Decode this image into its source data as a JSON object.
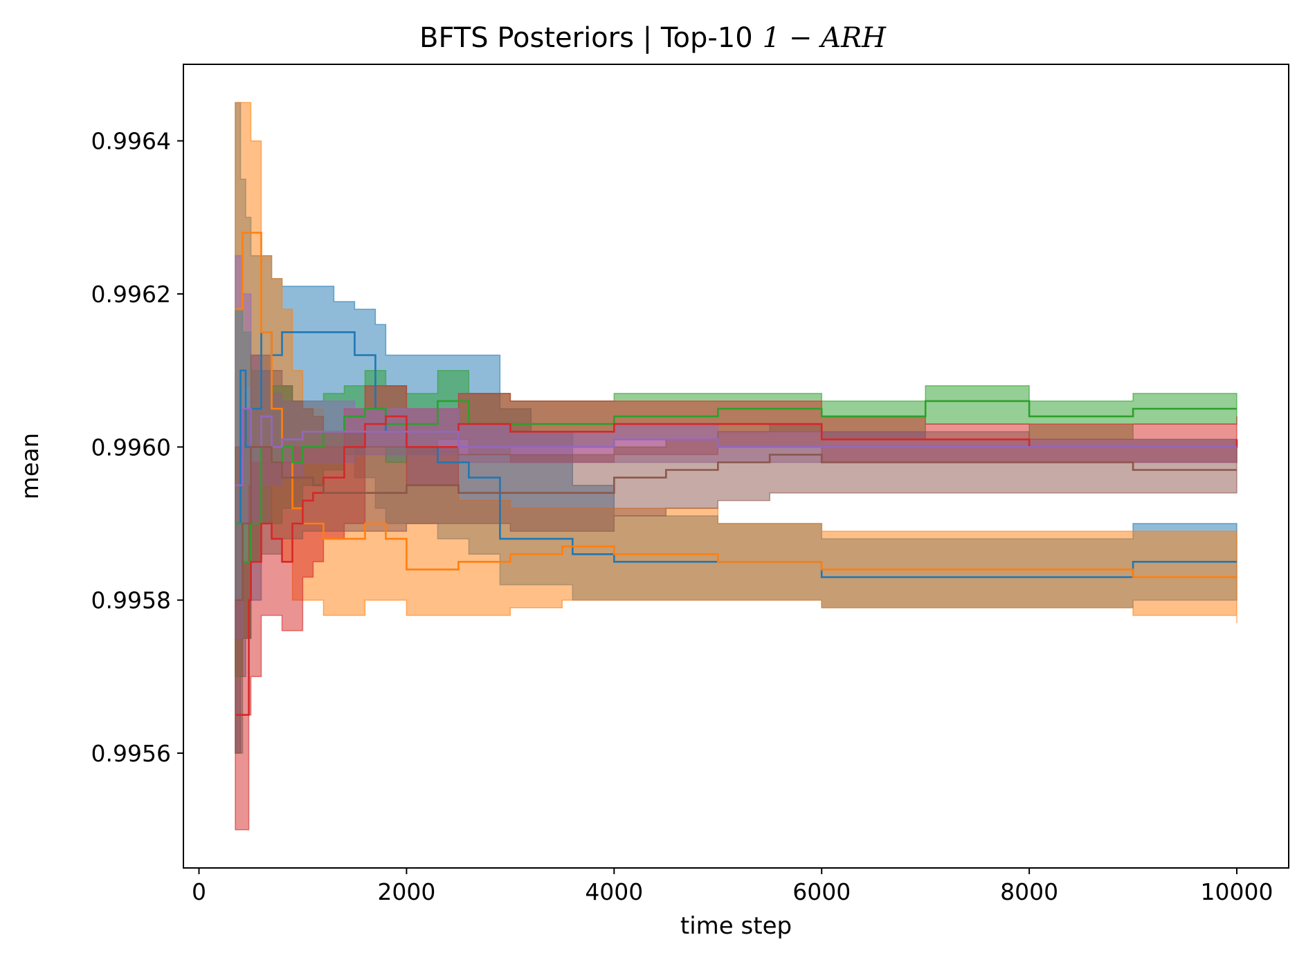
{
  "chart_data": {
    "type": "line",
    "title": "BFTS Posteriors | Top-10",
    "title_math": "1 − ARH",
    "xlabel": "time step",
    "ylabel": "mean",
    "xlim": [
      -150,
      10500
    ],
    "ylim": [
      0.99545,
      0.9965
    ],
    "xticks": [
      0,
      2000,
      4000,
      6000,
      8000,
      10000
    ],
    "xtick_labels": [
      "0",
      "2000",
      "4000",
      "6000",
      "8000",
      "10000"
    ],
    "yticks": [
      0.9956,
      0.9958,
      0.996,
      0.9962,
      0.9964
    ],
    "ytick_labels": [
      "0.9956",
      "0.9958",
      "0.9960",
      "0.9962",
      "0.9964"
    ],
    "grid": false,
    "legend": "none",
    "series": [
      {
        "color": "#1f77b4",
        "x": [
          350,
          400,
          450,
          500,
          600,
          700,
          800,
          1000,
          1300,
          1500,
          1700,
          1800,
          2000,
          2300,
          2600,
          2900,
          3200,
          3600,
          4000,
          5000,
          6000,
          7000,
          8000,
          9000,
          10000
        ],
        "y": [
          0.9959,
          0.9961,
          0.996,
          0.99605,
          0.99615,
          0.99612,
          0.99615,
          0.99615,
          0.99615,
          0.99612,
          0.99605,
          0.99602,
          0.996,
          0.99598,
          0.99596,
          0.99588,
          0.99588,
          0.99586,
          0.99585,
          0.99585,
          0.99583,
          0.99583,
          0.99583,
          0.99585,
          0.99585
        ],
        "lower": [
          0.9956,
          0.9957,
          0.99575,
          0.9958,
          0.9959,
          0.99595,
          0.99598,
          0.996,
          0.996,
          0.99596,
          0.99592,
          0.9959,
          0.9959,
          0.99588,
          0.99586,
          0.99582,
          0.99582,
          0.9958,
          0.9958,
          0.9958,
          0.99579,
          0.99579,
          0.99579,
          0.9958,
          0.9958
        ],
        "upper": [
          0.99645,
          0.99635,
          0.9963,
          0.99625,
          0.99625,
          0.99622,
          0.99621,
          0.99621,
          0.99619,
          0.99618,
          0.99616,
          0.99612,
          0.99612,
          0.99612,
          0.99612,
          0.99605,
          0.99602,
          0.99595,
          0.99591,
          0.9959,
          0.99588,
          0.99588,
          0.99588,
          0.9959,
          0.9959
        ]
      },
      {
        "color": "#ff7f0e",
        "x": [
          350,
          420,
          500,
          600,
          700,
          800,
          900,
          1000,
          1200,
          1400,
          1600,
          1800,
          2000,
          2500,
          3000,
          3500,
          4000,
          5000,
          6000,
          7000,
          8000,
          9000,
          10000
        ],
        "y": [
          0.99618,
          0.99628,
          0.99628,
          0.99615,
          0.99605,
          0.996,
          0.99592,
          0.9959,
          0.99588,
          0.99588,
          0.9959,
          0.99588,
          0.99584,
          0.99585,
          0.99586,
          0.99587,
          0.99586,
          0.99585,
          0.99584,
          0.99584,
          0.99584,
          0.99583,
          0.99583
        ],
        "lower": [
          0.99595,
          0.99608,
          0.996,
          0.99595,
          0.99588,
          0.99585,
          0.9958,
          0.9958,
          0.99578,
          0.99578,
          0.9958,
          0.9958,
          0.99578,
          0.99578,
          0.99579,
          0.9958,
          0.9958,
          0.9958,
          0.99579,
          0.99579,
          0.99579,
          0.99578,
          0.99577
        ],
        "upper": [
          0.99645,
          0.99645,
          0.9964,
          0.99625,
          0.99622,
          0.99618,
          0.9961,
          0.99605,
          0.99602,
          0.996,
          0.996,
          0.99598,
          0.99595,
          0.99593,
          0.99592,
          0.99592,
          0.99592,
          0.9959,
          0.99589,
          0.99589,
          0.99589,
          0.99589,
          0.99589
        ]
      },
      {
        "color": "#2ca02c",
        "x": [
          350,
          420,
          500,
          600,
          700,
          800,
          900,
          1000,
          1200,
          1400,
          1600,
          1800,
          2000,
          2300,
          2600,
          3000,
          3500,
          4000,
          5000,
          6000,
          7000,
          8000,
          9000,
          10000
        ],
        "y": [
          0.9959,
          0.99585,
          0.9959,
          0.996,
          0.99598,
          0.996,
          0.99598,
          0.996,
          0.99602,
          0.99604,
          0.99605,
          0.99603,
          0.99603,
          0.99606,
          0.99603,
          0.99603,
          0.99603,
          0.99604,
          0.99605,
          0.99604,
          0.99606,
          0.99604,
          0.99605,
          0.99605
        ],
        "lower": [
          0.9957,
          0.99575,
          0.99585,
          0.9959,
          0.9959,
          0.99592,
          0.99592,
          0.99595,
          0.99597,
          0.99599,
          0.996,
          0.99598,
          0.99599,
          0.99601,
          0.99599,
          0.996,
          0.996,
          0.99601,
          0.99602,
          0.99601,
          0.99603,
          0.99601,
          0.99603,
          0.99604
        ],
        "upper": [
          0.99618,
          0.99615,
          0.9961,
          0.9961,
          0.99608,
          0.99608,
          0.99606,
          0.99606,
          0.99607,
          0.99608,
          0.9961,
          0.99608,
          0.99607,
          0.9961,
          0.99607,
          0.99606,
          0.99606,
          0.99607,
          0.99607,
          0.99606,
          0.99608,
          0.99606,
          0.99607,
          0.99606
        ]
      },
      {
        "color": "#d62728",
        "x": [
          350,
          420,
          480,
          500,
          600,
          700,
          800,
          900,
          1000,
          1100,
          1200,
          1400,
          1600,
          1800,
          2000,
          2200,
          2500,
          3000,
          3500,
          4000,
          5000,
          6000,
          7000,
          8000,
          9000,
          10000
        ],
        "y": [
          0.99565,
          0.99565,
          0.9958,
          0.99585,
          0.9959,
          0.99588,
          0.99585,
          0.9959,
          0.99593,
          0.99594,
          0.99596,
          0.996,
          0.99603,
          0.99604,
          0.996,
          0.996,
          0.99603,
          0.99602,
          0.99602,
          0.99603,
          0.99603,
          0.99601,
          0.99601,
          0.996,
          0.996,
          0.99601
        ],
        "lower": [
          0.9955,
          0.9955,
          0.99565,
          0.9957,
          0.99578,
          0.99578,
          0.99576,
          0.99576,
          0.99583,
          0.99585,
          0.99588,
          0.9959,
          0.996,
          0.996,
          0.99595,
          0.99595,
          0.99599,
          0.99598,
          0.99598,
          0.99599,
          0.996,
          0.99598,
          0.99598,
          0.99598,
          0.99598,
          0.99599
        ],
        "upper": [
          0.9958,
          0.99585,
          0.99595,
          0.99598,
          0.996,
          0.99598,
          0.99598,
          0.996,
          0.996,
          0.996,
          0.996,
          0.99605,
          0.99608,
          0.99608,
          0.99605,
          0.99605,
          0.99607,
          0.99606,
          0.99606,
          0.99606,
          0.99606,
          0.99604,
          0.99603,
          0.99603,
          0.99603,
          0.99604
        ]
      },
      {
        "color": "#9467bd",
        "x": [
          350,
          420,
          500,
          600,
          700,
          800,
          1000,
          1200,
          1500,
          1800,
          2000,
          2500,
          3000,
          3500,
          4000,
          5000,
          6000,
          7000,
          8000,
          9000,
          10000
        ],
        "y": [
          0.99595,
          0.99605,
          0.996,
          0.99604,
          0.996,
          0.99601,
          0.99602,
          0.99602,
          0.99602,
          0.99602,
          0.99602,
          0.996,
          0.996,
          0.996,
          0.99601,
          0.996,
          0.996,
          0.996,
          0.996,
          0.996,
          0.996
        ],
        "lower": [
          0.99575,
          0.9959,
          0.9959,
          0.99595,
          0.99595,
          0.99596,
          0.99598,
          0.99598,
          0.99599,
          0.99599,
          0.99599,
          0.99598,
          0.99598,
          0.99598,
          0.99598,
          0.99598,
          0.99598,
          0.99598,
          0.99598,
          0.99598,
          0.99599
        ],
        "upper": [
          0.99625,
          0.9962,
          0.99612,
          0.9961,
          0.99607,
          0.99606,
          0.99606,
          0.99606,
          0.99605,
          0.99605,
          0.99605,
          0.99603,
          0.99602,
          0.99602,
          0.99603,
          0.99602,
          0.99602,
          0.99601,
          0.99601,
          0.99601,
          0.99601
        ]
      },
      {
        "color": "#8c564b",
        "x": [
          350,
          420,
          500,
          600,
          700,
          800,
          900,
          1000,
          1100,
          1200,
          1500,
          1600,
          2000,
          2500,
          3000,
          3500,
          4000,
          4500,
          5000,
          5500,
          6000,
          7000,
          8000,
          9000,
          10000
        ],
        "y": [
          0.9958,
          0.9959,
          0.996,
          0.996,
          0.99598,
          0.99596,
          0.99596,
          0.99596,
          0.99595,
          0.99594,
          0.99594,
          0.99594,
          0.99595,
          0.99594,
          0.99594,
          0.99594,
          0.99596,
          0.99597,
          0.99598,
          0.99599,
          0.99598,
          0.99598,
          0.99598,
          0.99597,
          0.99597
        ],
        "lower": [
          0.9956,
          0.99575,
          0.99585,
          0.99586,
          0.99586,
          0.99588,
          0.99588,
          0.99589,
          0.99589,
          0.99589,
          0.99589,
          0.99589,
          0.9959,
          0.9959,
          0.99589,
          0.99589,
          0.99591,
          0.99592,
          0.99593,
          0.99594,
          0.99594,
          0.99594,
          0.99594,
          0.99594,
          0.99594
        ],
        "upper": [
          0.996,
          0.99605,
          0.99612,
          0.99612,
          0.9961,
          0.99608,
          0.99606,
          0.99605,
          0.99604,
          0.99602,
          0.99602,
          0.996,
          0.996,
          0.99599,
          0.99599,
          0.99599,
          0.996,
          0.99601,
          0.99602,
          0.99603,
          0.99602,
          0.99602,
          0.99601,
          0.99601,
          0.996
        ]
      }
    ]
  }
}
